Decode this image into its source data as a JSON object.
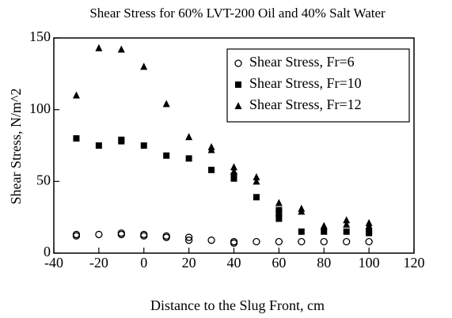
{
  "chart_data": {
    "type": "scatter",
    "title": "Shear Stress for 60% LVT-200 Oil and 40% Salt Water",
    "x_label": "Distance to the Slug Front, cm",
    "y_label": "Shear Stress, N/m^2",
    "xlim": [
      -40,
      120
    ],
    "xticks": [
      -40,
      -20,
      0,
      20,
      40,
      60,
      80,
      100,
      120
    ],
    "ylim": [
      0,
      150
    ],
    "yticks": [
      0,
      50,
      100,
      150
    ],
    "legend": "upper right",
    "series": [
      {
        "name": "Shear Stress, Fr=6",
        "marker": "circle",
        "color": "#000000",
        "x": [
          -30,
          -30,
          -20,
          -10,
          -10,
          0,
          0,
          10,
          10,
          20,
          20,
          30,
          40,
          40,
          50,
          60,
          70,
          80,
          90,
          100
        ],
        "values": [
          13,
          12,
          13,
          14,
          13,
          13,
          12,
          12,
          11,
          11,
          9,
          9,
          8,
          7,
          8,
          8,
          8,
          8,
          8,
          8
        ]
      },
      {
        "name": "Shear Stress, Fr=10",
        "marker": "square",
        "color": "#000000",
        "x": [
          -30,
          -20,
          -10,
          -10,
          0,
          10,
          20,
          30,
          40,
          40,
          50,
          60,
          60,
          60,
          70,
          80,
          90,
          100,
          100
        ],
        "values": [
          80,
          75,
          79,
          78,
          75,
          68,
          66,
          58,
          54,
          52,
          39,
          30,
          24,
          28,
          15,
          15,
          15,
          15,
          14
        ]
      },
      {
        "name": "Shear Stress, Fr=12",
        "marker": "triangle",
        "color": "#000000",
        "x": [
          -30,
          -20,
          -10,
          0,
          10,
          20,
          30,
          30,
          40,
          40,
          50,
          50,
          60,
          60,
          70,
          70,
          80,
          90,
          90,
          100,
          100
        ],
        "values": [
          110,
          143,
          142,
          130,
          104,
          81,
          74,
          72,
          60,
          57,
          53,
          50,
          35,
          28,
          31,
          29,
          19,
          23,
          20,
          21,
          19
        ]
      }
    ]
  }
}
